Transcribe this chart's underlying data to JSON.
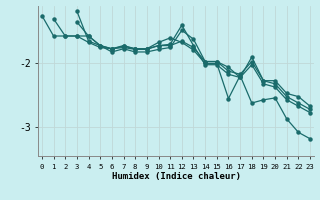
{
  "xlabel": "Humidex (Indice chaleur)",
  "bg_color": "#caeef0",
  "line_color": "#1a6b6b",
  "grid_color": "#b8dede",
  "xlim": [
    -0.3,
    23.3
  ],
  "ylim": [
    -3.45,
    -1.1
  ],
  "yticks": [
    -3,
    -2
  ],
  "xticks": [
    0,
    1,
    2,
    3,
    4,
    5,
    6,
    7,
    8,
    9,
    10,
    11,
    12,
    13,
    14,
    15,
    16,
    17,
    18,
    19,
    20,
    21,
    22,
    23
  ],
  "lines": [
    {
      "x": [
        0,
        1,
        2,
        3,
        4,
        5,
        6,
        7,
        8,
        9,
        10,
        11,
        12,
        13,
        14,
        15,
        16,
        17,
        18,
        19,
        20,
        21,
        22,
        23
      ],
      "y": [
        -1.25,
        -1.57,
        -1.57,
        -1.57,
        -1.67,
        -1.75,
        -1.77,
        -1.75,
        -1.78,
        -1.78,
        -1.72,
        -1.72,
        -1.65,
        -1.75,
        -1.97,
        -1.97,
        -2.06,
        -2.22,
        -1.9,
        -2.27,
        -2.27,
        -2.47,
        -2.52,
        -2.67
      ]
    },
    {
      "x": [
        1,
        2,
        3,
        4,
        5,
        6,
        7,
        8,
        9,
        10,
        11,
        12,
        13,
        14,
        15,
        16,
        17,
        18,
        19,
        20,
        21,
        22,
        23
      ],
      "y": [
        -1.3,
        -1.57,
        -1.57,
        -1.57,
        -1.72,
        -1.82,
        -1.77,
        -1.82,
        -1.82,
        -1.78,
        -1.75,
        -1.48,
        -1.62,
        -1.97,
        -1.97,
        -2.12,
        -2.17,
        -1.97,
        -2.27,
        -2.32,
        -2.52,
        -2.62,
        -2.72
      ]
    },
    {
      "x": [
        3,
        4,
        5,
        6,
        7,
        8,
        9,
        10,
        11,
        12,
        13,
        14,
        15,
        16,
        17,
        18,
        19,
        20,
        21,
        22,
        23
      ],
      "y": [
        -1.35,
        -1.57,
        -1.72,
        -1.77,
        -1.72,
        -1.77,
        -1.77,
        -1.72,
        -1.7,
        -1.4,
        -1.72,
        -2.02,
        -2.02,
        -2.17,
        -2.22,
        -2.02,
        -2.32,
        -2.37,
        -2.57,
        -2.67,
        -2.77
      ]
    },
    {
      "x": [
        3,
        4,
        5,
        6,
        7,
        8,
        9,
        10,
        11,
        12,
        13,
        14,
        15,
        16,
        17,
        18,
        19,
        20,
        21,
        22,
        23
      ],
      "y": [
        -1.18,
        -1.65,
        -1.72,
        -1.77,
        -1.73,
        -1.77,
        -1.77,
        -1.67,
        -1.6,
        -1.67,
        -1.79,
        -2.0,
        -2.0,
        -2.55,
        -2.19,
        -2.62,
        -2.57,
        -2.54,
        -2.87,
        -3.08,
        -3.18
      ]
    }
  ]
}
